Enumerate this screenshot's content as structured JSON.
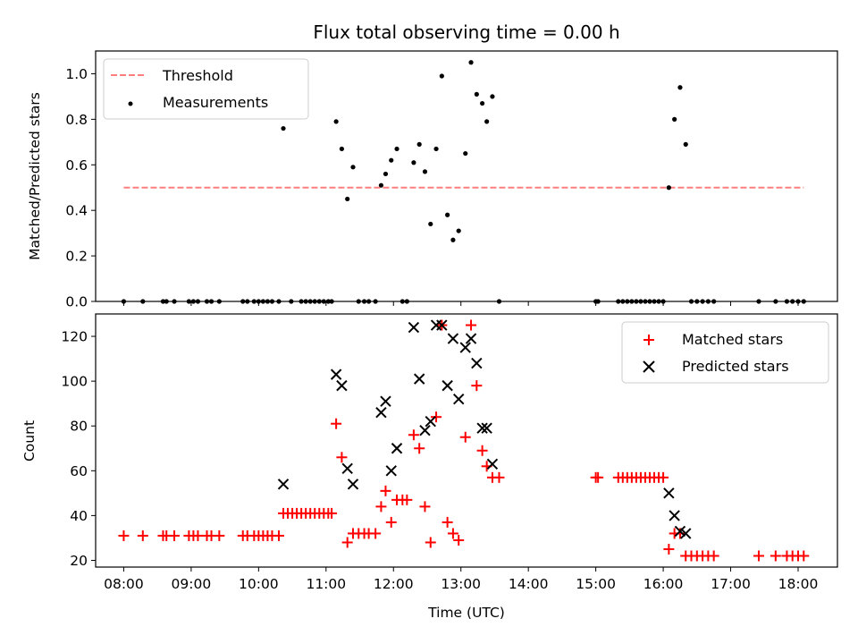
{
  "chart_data": [
    {
      "type": "scatter",
      "title": "Flux total observing time = 0.00 h",
      "xlabel": "",
      "ylabel": "Matched/Predicted stars",
      "xlim": [
        "07:35",
        "18:35"
      ],
      "ylim": [
        0,
        1.1
      ],
      "yticks": [
        "0.0",
        "0.2",
        "0.4",
        "0.6",
        "0.8",
        "1.0"
      ],
      "grid": false,
      "legend_position": "top-left",
      "threshold": {
        "name": "Threshold",
        "value": 0.5,
        "x_start": "08:00",
        "x_end": "18:05",
        "color": "#ff7f7f",
        "style": "dashed"
      },
      "series": [
        {
          "name": "Measurements",
          "color": "#000000",
          "marker": "dot",
          "points": [
            [
              "08:00",
              0
            ],
            [
              "08:17",
              0
            ],
            [
              "08:35",
              0
            ],
            [
              "08:38",
              0
            ],
            [
              "08:45",
              0
            ],
            [
              "08:58",
              0
            ],
            [
              "09:02",
              0
            ],
            [
              "09:06",
              0
            ],
            [
              "09:14",
              0
            ],
            [
              "09:18",
              0
            ],
            [
              "09:25",
              0
            ],
            [
              "09:46",
              0
            ],
            [
              "09:50",
              0
            ],
            [
              "09:56",
              0
            ],
            [
              "10:00",
              0
            ],
            [
              "10:04",
              0
            ],
            [
              "10:08",
              0
            ],
            [
              "10:12",
              0
            ],
            [
              "10:18",
              0
            ],
            [
              "10:22",
              0.76
            ],
            [
              "10:29",
              0
            ],
            [
              "10:38",
              0
            ],
            [
              "10:42",
              0
            ],
            [
              "10:46",
              0
            ],
            [
              "10:50",
              0
            ],
            [
              "10:54",
              0
            ],
            [
              "10:58",
              0
            ],
            [
              "11:02",
              0
            ],
            [
              "11:05",
              0
            ],
            [
              "11:09",
              0.79
            ],
            [
              "11:14",
              0.67
            ],
            [
              "11:19",
              0.45
            ],
            [
              "11:24",
              0.59
            ],
            [
              "11:29",
              0
            ],
            [
              "11:34",
              0
            ],
            [
              "11:38",
              0
            ],
            [
              "11:44",
              0
            ],
            [
              "11:49",
              0.51
            ],
            [
              "11:53",
              0.56
            ],
            [
              "11:58",
              0.62
            ],
            [
              "12:03",
              0.67
            ],
            [
              "12:08",
              0
            ],
            [
              "12:12",
              0
            ],
            [
              "12:18",
              0.61
            ],
            [
              "12:23",
              0.69
            ],
            [
              "12:28",
              0.57
            ],
            [
              "12:33",
              0.34
            ],
            [
              "12:38",
              0.67
            ],
            [
              "12:43",
              0.99
            ],
            [
              "12:48",
              0.38
            ],
            [
              "12:53",
              0.27
            ],
            [
              "12:58",
              0.31
            ],
            [
              "13:04",
              0.65
            ],
            [
              "13:09",
              1.05
            ],
            [
              "13:14",
              0.91
            ],
            [
              "13:19",
              0.87
            ],
            [
              "13:23",
              0.79
            ],
            [
              "13:28",
              0.9
            ],
            [
              "13:34",
              0
            ],
            [
              "15:00",
              0
            ],
            [
              "15:02",
              0
            ],
            [
              "15:20",
              0
            ],
            [
              "15:24",
              0
            ],
            [
              "15:28",
              0
            ],
            [
              "15:32",
              0
            ],
            [
              "15:36",
              0
            ],
            [
              "15:40",
              0
            ],
            [
              "15:44",
              0
            ],
            [
              "15:48",
              0
            ],
            [
              "15:52",
              0
            ],
            [
              "15:56",
              0
            ],
            [
              "16:00",
              0
            ],
            [
              "16:05",
              0.5
            ],
            [
              "16:10",
              0.8
            ],
            [
              "16:15",
              0.94
            ],
            [
              "16:20",
              0.69
            ],
            [
              "16:25",
              0
            ],
            [
              "16:30",
              0
            ],
            [
              "16:35",
              0
            ],
            [
              "16:40",
              0
            ],
            [
              "16:45",
              0
            ],
            [
              "17:25",
              0
            ],
            [
              "17:40",
              0
            ],
            [
              "17:50",
              0
            ],
            [
              "17:55",
              0
            ],
            [
              "18:00",
              0
            ],
            [
              "18:05",
              0
            ]
          ]
        }
      ]
    },
    {
      "type": "scatter",
      "title": "",
      "xlabel": "Time (UTC)",
      "ylabel": "Count",
      "xlim": [
        "07:35",
        "18:35"
      ],
      "ylim": [
        17,
        130
      ],
      "yticks": [
        "20",
        "40",
        "60",
        "80",
        "100",
        "120"
      ],
      "xticks": [
        "08:00",
        "09:00",
        "10:00",
        "11:00",
        "12:00",
        "13:00",
        "14:00",
        "15:00",
        "16:00",
        "17:00",
        "18:00"
      ],
      "grid": false,
      "legend_position": "top-right",
      "series": [
        {
          "name": "Matched stars",
          "color": "#ff0000",
          "marker": "plus",
          "points": [
            [
              "08:00",
              31
            ],
            [
              "08:17",
              31
            ],
            [
              "08:35",
              31
            ],
            [
              "08:38",
              31
            ],
            [
              "08:45",
              31
            ],
            [
              "08:58",
              31
            ],
            [
              "09:02",
              31
            ],
            [
              "09:06",
              31
            ],
            [
              "09:14",
              31
            ],
            [
              "09:18",
              31
            ],
            [
              "09:25",
              31
            ],
            [
              "09:46",
              31
            ],
            [
              "09:50",
              31
            ],
            [
              "09:56",
              31
            ],
            [
              "10:00",
              31
            ],
            [
              "10:04",
              31
            ],
            [
              "10:08",
              31
            ],
            [
              "10:12",
              31
            ],
            [
              "10:18",
              31
            ],
            [
              "10:22",
              41
            ],
            [
              "10:26",
              41
            ],
            [
              "10:30",
              41
            ],
            [
              "10:34",
              41
            ],
            [
              "10:38",
              41
            ],
            [
              "10:42",
              41
            ],
            [
              "10:46",
              41
            ],
            [
              "10:50",
              41
            ],
            [
              "10:54",
              41
            ],
            [
              "10:58",
              41
            ],
            [
              "11:02",
              41
            ],
            [
              "11:05",
              41
            ],
            [
              "11:09",
              81
            ],
            [
              "11:14",
              66
            ],
            [
              "11:19",
              28
            ],
            [
              "11:24",
              32
            ],
            [
              "11:29",
              32
            ],
            [
              "11:34",
              32
            ],
            [
              "11:38",
              32
            ],
            [
              "11:44",
              32
            ],
            [
              "11:49",
              44
            ],
            [
              "11:53",
              51
            ],
            [
              "11:58",
              37
            ],
            [
              "12:03",
              47
            ],
            [
              "12:08",
              47
            ],
            [
              "12:12",
              47
            ],
            [
              "12:18",
              76
            ],
            [
              "12:23",
              70
            ],
            [
              "12:28",
              44
            ],
            [
              "12:33",
              28
            ],
            [
              "12:38",
              84
            ],
            [
              "12:43",
              125
            ],
            [
              "12:48",
              37
            ],
            [
              "12:53",
              32
            ],
            [
              "12:58",
              29
            ],
            [
              "13:04",
              75
            ],
            [
              "13:09",
              125
            ],
            [
              "13:14",
              98
            ],
            [
              "13:19",
              69
            ],
            [
              "13:23",
              62
            ],
            [
              "13:28",
              57
            ],
            [
              "13:34",
              57
            ],
            [
              "15:00",
              57
            ],
            [
              "15:02",
              57
            ],
            [
              "15:20",
              57
            ],
            [
              "15:24",
              57
            ],
            [
              "15:28",
              57
            ],
            [
              "15:32",
              57
            ],
            [
              "15:36",
              57
            ],
            [
              "15:40",
              57
            ],
            [
              "15:44",
              57
            ],
            [
              "15:48",
              57
            ],
            [
              "15:52",
              57
            ],
            [
              "15:56",
              57
            ],
            [
              "16:00",
              57
            ],
            [
              "16:05",
              25
            ],
            [
              "16:10",
              32
            ],
            [
              "16:15",
              32
            ],
            [
              "16:20",
              22
            ],
            [
              "16:25",
              22
            ],
            [
              "16:30",
              22
            ],
            [
              "16:35",
              22
            ],
            [
              "16:40",
              22
            ],
            [
              "16:45",
              22
            ],
            [
              "17:25",
              22
            ],
            [
              "17:40",
              22
            ],
            [
              "17:50",
              22
            ],
            [
              "17:55",
              22
            ],
            [
              "18:00",
              22
            ],
            [
              "18:05",
              22
            ]
          ]
        },
        {
          "name": "Predicted stars",
          "color": "#000000",
          "marker": "cross",
          "points": [
            [
              "10:22",
              54
            ],
            [
              "11:09",
              103
            ],
            [
              "11:14",
              98
            ],
            [
              "11:19",
              61
            ],
            [
              "11:24",
              54
            ],
            [
              "11:49",
              86
            ],
            [
              "11:53",
              91
            ],
            [
              "11:58",
              60
            ],
            [
              "12:03",
              70
            ],
            [
              "12:18",
              124
            ],
            [
              "12:23",
              101
            ],
            [
              "12:28",
              78
            ],
            [
              "12:33",
              82
            ],
            [
              "12:38",
              125
            ],
            [
              "12:43",
              125
            ],
            [
              "12:48",
              98
            ],
            [
              "12:53",
              119
            ],
            [
              "12:58",
              92
            ],
            [
              "13:04",
              115
            ],
            [
              "13:09",
              119
            ],
            [
              "13:14",
              108
            ],
            [
              "13:19",
              79
            ],
            [
              "13:23",
              79
            ],
            [
              "13:28",
              63
            ],
            [
              "16:05",
              50
            ],
            [
              "16:10",
              40
            ],
            [
              "16:15",
              33
            ],
            [
              "16:20",
              32
            ]
          ]
        }
      ]
    }
  ]
}
